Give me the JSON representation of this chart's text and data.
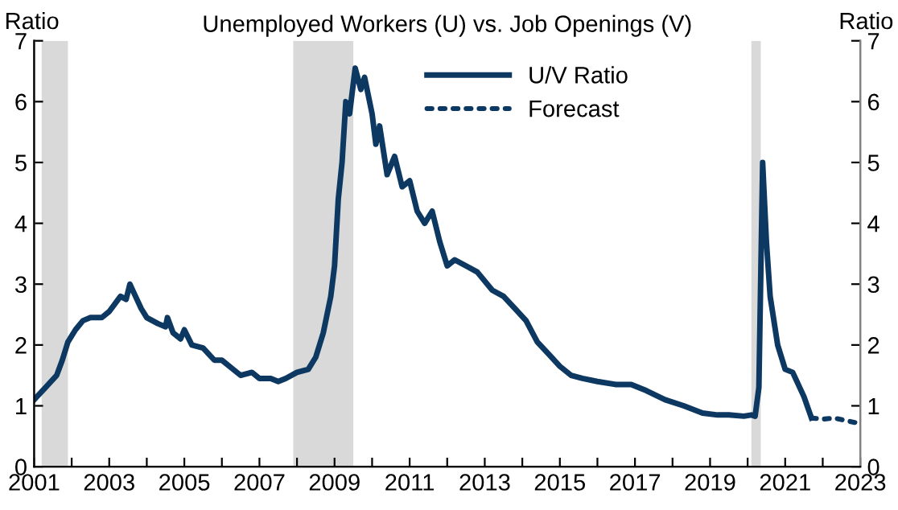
{
  "chart_data": {
    "type": "line",
    "title": "Unemployed Workers (U) vs. Job Openings (V)",
    "ylabel": "Ratio",
    "y2label": "Ratio",
    "xlim": [
      2001,
      2023
    ],
    "xticks": [
      2001,
      {
        "value": 2002,
        "label": null
      },
      2003,
      {
        "value": 2004,
        "label": null
      },
      2005,
      {
        "value": 2006,
        "label": null
      },
      2007,
      {
        "value": 2008,
        "label": null
      },
      2009,
      {
        "value": 2010,
        "label": null
      },
      2011,
      {
        "value": 2012,
        "label": null
      },
      2013,
      {
        "value": 2014,
        "label": null
      },
      2015,
      {
        "value": 2016,
        "label": null
      },
      2017,
      {
        "value": 2018,
        "label": null
      },
      2019,
      {
        "value": 2020,
        "label": null
      },
      2021,
      {
        "value": 2022,
        "label": null
      },
      2023
    ],
    "ylim": [
      0,
      7
    ],
    "yticks": [
      0,
      1,
      2,
      3,
      4,
      5,
      6,
      7
    ],
    "y2lim": [
      0,
      7
    ],
    "y2ticks": [
      0,
      1,
      2,
      3,
      4,
      5,
      6,
      7
    ],
    "grid": false,
    "legend": "top",
    "marker": "none",
    "bands": [
      {
        "axis": "x",
        "from": 2001.2,
        "to": 2001.9,
        "color": "#d9d9d9"
      },
      {
        "axis": "x",
        "from": 2007.9,
        "to": 2009.5,
        "color": "#d9d9d9"
      },
      {
        "axis": "x",
        "from": 2020.1,
        "to": 2020.35,
        "color": "#d9d9d9"
      }
    ],
    "series": [
      {
        "name": "U/V Ratio",
        "color": "#0c3862",
        "line_style": "solid",
        "x": [
          2001.0,
          2001.3,
          2001.6,
          2001.75,
          2001.9,
          2002.1,
          2002.3,
          2002.5,
          2002.8,
          2003.0,
          2003.3,
          2003.45,
          2003.55,
          2003.7,
          2003.85,
          2004.0,
          2004.3,
          2004.5,
          2004.55,
          2004.7,
          2004.9,
          2005.0,
          2005.2,
          2005.5,
          2005.8,
          2006.0,
          2006.3,
          2006.5,
          2006.8,
          2007.0,
          2007.3,
          2007.5,
          2007.7,
          2008.0,
          2008.3,
          2008.5,
          2008.7,
          2008.9,
          2009.0,
          2009.1,
          2009.2,
          2009.3,
          2009.4,
          2009.55,
          2009.7,
          2009.8,
          2010.0,
          2010.1,
          2010.2,
          2010.4,
          2010.6,
          2010.8,
          2011.0,
          2011.2,
          2011.4,
          2011.6,
          2011.8,
          2012.0,
          2012.2,
          2012.5,
          2012.8,
          2013.2,
          2013.5,
          2013.8,
          2014.1,
          2014.4,
          2014.7,
          2015.0,
          2015.3,
          2015.6,
          2016.0,
          2016.5,
          2016.9,
          2017.3,
          2017.8,
          2018.3,
          2018.8,
          2019.2,
          2019.5,
          2019.9,
          2020.1,
          2020.2,
          2020.3,
          2020.4,
          2020.5,
          2020.6,
          2020.8,
          2021.0,
          2021.2,
          2021.5,
          2021.7
        ],
        "values": [
          1.1,
          1.3,
          1.5,
          1.75,
          2.05,
          2.25,
          2.4,
          2.45,
          2.45,
          2.55,
          2.8,
          2.75,
          3.0,
          2.8,
          2.6,
          2.45,
          2.35,
          2.3,
          2.45,
          2.2,
          2.1,
          2.25,
          2.0,
          1.95,
          1.75,
          1.75,
          1.6,
          1.5,
          1.55,
          1.45,
          1.45,
          1.4,
          1.45,
          1.55,
          1.6,
          1.8,
          2.2,
          2.8,
          3.3,
          4.4,
          5.0,
          6.0,
          5.8,
          6.55,
          6.2,
          6.4,
          5.8,
          5.3,
          5.6,
          4.8,
          5.1,
          4.6,
          4.7,
          4.2,
          4.0,
          4.2,
          3.7,
          3.3,
          3.4,
          3.3,
          3.2,
          2.9,
          2.8,
          2.6,
          2.4,
          2.05,
          1.85,
          1.65,
          1.5,
          1.45,
          1.4,
          1.35,
          1.35,
          1.25,
          1.1,
          1.0,
          0.88,
          0.85,
          0.85,
          0.83,
          0.85,
          0.83,
          1.3,
          5.0,
          3.7,
          2.8,
          2.0,
          1.6,
          1.55,
          1.15,
          0.8
        ]
      },
      {
        "name": "Forecast",
        "color": "#0c3862",
        "line_style": "dotted",
        "x": [
          2021.7,
          2022.0,
          2022.3,
          2022.6,
          2022.9
        ],
        "values": [
          0.8,
          0.78,
          0.8,
          0.76,
          0.72
        ]
      }
    ]
  }
}
